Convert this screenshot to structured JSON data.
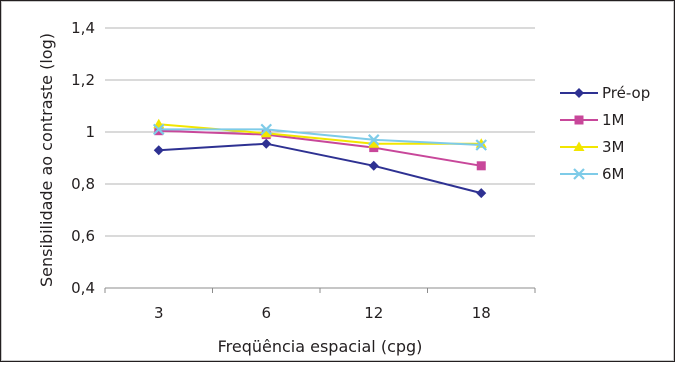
{
  "chart_data": {
    "type": "line",
    "title": "",
    "xlabel": "Freqüência espacial (cpg)",
    "ylabel": "Sensibilidade ao contraste (log)",
    "categories": [
      "3",
      "6",
      "12",
      "18"
    ],
    "y_ticks": [
      "0,4",
      "0,6",
      "0,8",
      "1",
      "1,2",
      "1,4"
    ],
    "y_tick_values": [
      0.4,
      0.6,
      0.8,
      1.0,
      1.2,
      1.4
    ],
    "ylim": [
      0.4,
      1.4
    ],
    "grid": "horizontal",
    "legend_position": "right",
    "series": [
      {
        "name": "Pré-op",
        "color": "#2e3192",
        "marker": "diamond",
        "values": [
          0.93,
          0.955,
          0.87,
          0.765
        ]
      },
      {
        "name": "1M",
        "color": "#c8479a",
        "marker": "square",
        "values": [
          1.005,
          0.99,
          0.94,
          0.87
        ]
      },
      {
        "name": "3M",
        "color": "#f2e600",
        "marker": "triangle",
        "values": [
          1.03,
          0.995,
          0.955,
          0.955
        ]
      },
      {
        "name": "6M",
        "color": "#7ecbe8",
        "marker": "x",
        "values": [
          1.01,
          1.01,
          0.97,
          0.95
        ]
      }
    ]
  }
}
